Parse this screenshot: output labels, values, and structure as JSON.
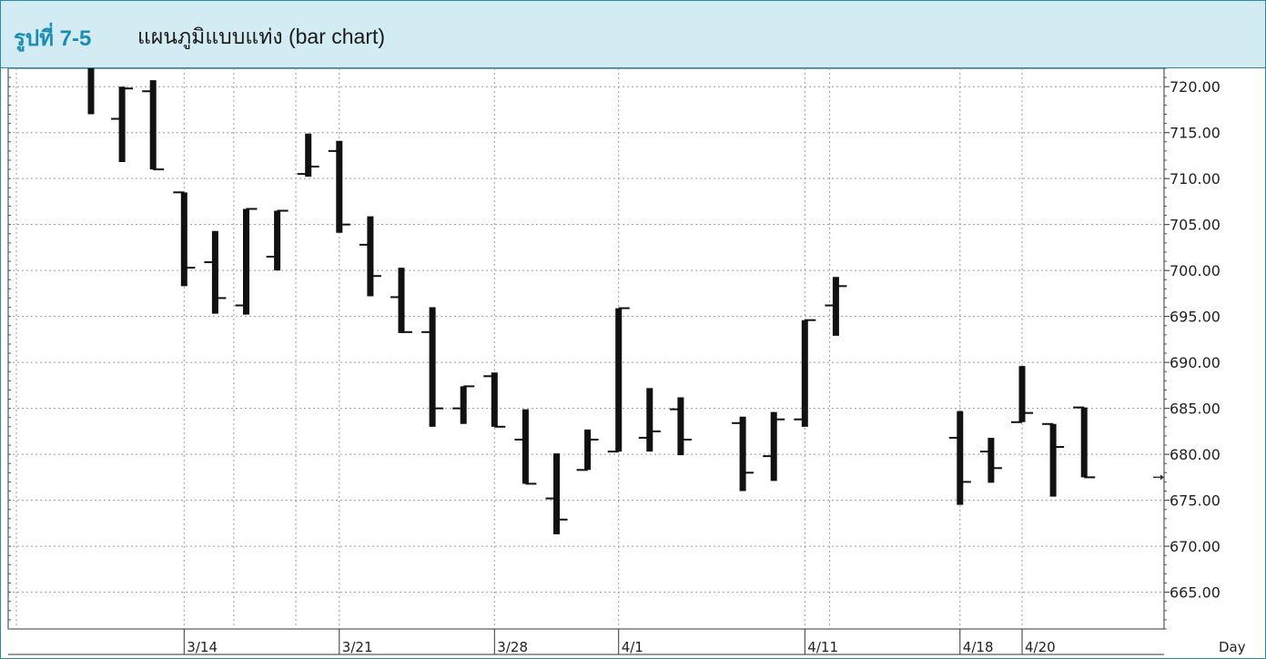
{
  "header": {
    "figure_number": "รูปที่ 7-5",
    "title": "แผนภูมิแบบแท่ง (bar chart)"
  },
  "colors": {
    "header_bg": "#d3ebf3",
    "figure_number": "#1b8db5",
    "bars": "#111111",
    "grid": "#9a9a9a"
  },
  "chart_data": {
    "type": "bar",
    "subtype": "ohlc",
    "xlabel": "Day",
    "ylim": [
      661,
      722
    ],
    "yticks": [
      "720.00",
      "715.00",
      "710.00",
      "705.00",
      "700.00",
      "695.00",
      "690.00",
      "685.00",
      "680.00",
      "675.00",
      "670.00",
      "665.00"
    ],
    "x_tick_labels": [
      {
        "label": "3/14",
        "day": 8
      },
      {
        "label": "3/21",
        "day": 13
      },
      {
        "label": "3/28",
        "day": 18
      },
      {
        "label": "4/1",
        "day": 22
      },
      {
        "label": "4/11",
        "day": 28
      },
      {
        "label": "4/18",
        "day": 33
      },
      {
        "label": "4/20",
        "day": 35
      }
    ],
    "grid": true,
    "last_price_marker": 677.5,
    "bars": [
      {
        "day": 5,
        "high": 722.5,
        "low": 717.0,
        "open": null,
        "close": null
      },
      {
        "day": 6,
        "high": 720.0,
        "low": 711.8,
        "open": 716.5,
        "close": 719.8
      },
      {
        "day": 7,
        "high": 720.7,
        "low": 711.0,
        "open": 719.5,
        "close": 711.0
      },
      {
        "day": 8,
        "high": 708.5,
        "low": 698.3,
        "open": 708.5,
        "close": 700.3
      },
      {
        "day": 9,
        "high": 704.3,
        "low": 695.3,
        "open": 700.9,
        "close": 697.0
      },
      {
        "day": 10,
        "high": 706.7,
        "low": 695.2,
        "open": 696.2,
        "close": 706.7
      },
      {
        "day": 11,
        "high": 706.5,
        "low": 700.0,
        "open": 701.5,
        "close": 706.5
      },
      {
        "day": 12,
        "high": 714.9,
        "low": 710.2,
        "open": 710.5,
        "close": 711.3
      },
      {
        "day": 13,
        "high": 714.1,
        "low": 704.1,
        "open": 713.0,
        "close": 705.0
      },
      {
        "day": 14,
        "high": 705.9,
        "low": 697.2,
        "open": 702.8,
        "close": 699.4
      },
      {
        "day": 15,
        "high": 700.3,
        "low": 693.2,
        "open": 697.1,
        "close": 693.3
      },
      {
        "day": 16,
        "high": 696.0,
        "low": 683.0,
        "open": 693.3,
        "close": 685.0
      },
      {
        "day": 17,
        "high": 687.4,
        "low": 683.3,
        "open": 685.0,
        "close": 687.4
      },
      {
        "day": 18,
        "high": 688.9,
        "low": 683.0,
        "open": 688.5,
        "close": 683.0
      },
      {
        "day": 19,
        "high": 684.9,
        "low": 676.8,
        "open": 681.6,
        "close": 676.8
      },
      {
        "day": 20,
        "high": 680.1,
        "low": 671.3,
        "open": 675.2,
        "close": 672.9
      },
      {
        "day": 21,
        "high": 682.7,
        "low": 678.3,
        "open": 678.3,
        "close": 681.6
      },
      {
        "day": 22,
        "high": 695.9,
        "low": 680.3,
        "open": 680.3,
        "close": 695.9
      },
      {
        "day": 23,
        "high": 687.2,
        "low": 680.3,
        "open": 681.8,
        "close": 682.5
      },
      {
        "day": 24,
        "high": 686.2,
        "low": 679.9,
        "open": 684.9,
        "close": 681.6
      },
      {
        "day": 26,
        "high": 684.1,
        "low": 676.0,
        "open": 683.4,
        "close": 678.0
      },
      {
        "day": 27,
        "high": 684.6,
        "low": 677.1,
        "open": 679.8,
        "close": 683.8
      },
      {
        "day": 28,
        "high": 694.6,
        "low": 683.0,
        "open": 683.8,
        "close": 694.6
      },
      {
        "day": 29,
        "high": 699.3,
        "low": 692.9,
        "open": 696.2,
        "close": 698.3
      },
      {
        "day": 33,
        "high": 684.7,
        "low": 674.5,
        "open": 681.8,
        "close": 677.0
      },
      {
        "day": 34,
        "high": 681.8,
        "low": 676.9,
        "open": 680.3,
        "close": 678.5
      },
      {
        "day": 35,
        "high": 689.6,
        "low": 683.5,
        "open": 683.5,
        "close": 684.5
      },
      {
        "day": 36,
        "high": 683.3,
        "low": 675.4,
        "open": 683.3,
        "close": 680.8
      },
      {
        "day": 37,
        "high": 685.1,
        "low": 677.5,
        "open": 685.1,
        "close": 677.5
      }
    ]
  }
}
